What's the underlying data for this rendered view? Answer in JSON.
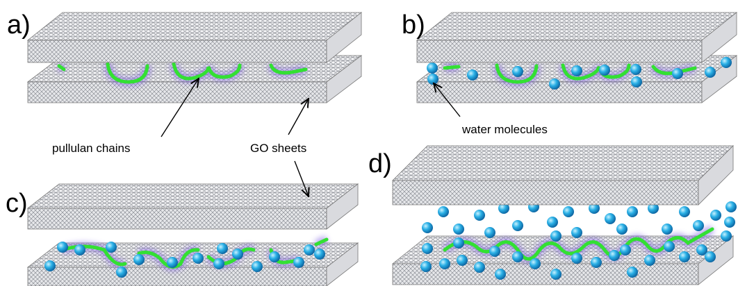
{
  "panels": [
    {
      "label": "a)"
    },
    {
      "label": "b)"
    },
    {
      "label": "c)"
    },
    {
      "label": "d)"
    }
  ],
  "annotations": [
    {
      "text": "pullulan chains"
    },
    {
      "text": "GO sheets"
    },
    {
      "text": "water molecules"
    }
  ]
}
